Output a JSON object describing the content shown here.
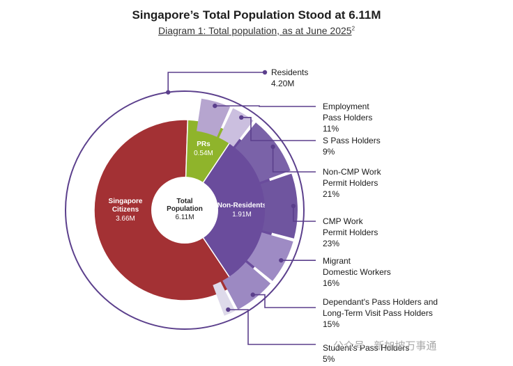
{
  "title": "Singapore’s Total Population Stood at 6.11M",
  "subtitle": "Diagram 1: Total population, as at June 2025",
  "subtitle_sup": "2",
  "watermark": "公众号 · 新加坡万事通",
  "colors": {
    "citizens": "#a33134",
    "prs": "#8fb42b",
    "non_residents": "#6a4c9c",
    "line": "#5b3f8c"
  },
  "chart_data": {
    "type": "pie",
    "title": "Singapore’s Total Population Stood at 6.11M",
    "center": {
      "label_1": "Total",
      "label_2": "Population",
      "value": "6.11M"
    },
    "inner_ring": [
      {
        "name": "Singapore Citizens",
        "label_1": "Singapore",
        "label_2": "Citizens",
        "value": 3.66,
        "display": "3.66M"
      },
      {
        "name": "PRs",
        "label_1": "PRs",
        "value": 0.54,
        "display": "0.54M"
      },
      {
        "name": "Non-Residents",
        "label_1": "Non-Residents",
        "value": 1.91,
        "display": "1.91M"
      }
    ],
    "residents": {
      "name": "Residents",
      "value": 4.2,
      "display": "4.20M"
    },
    "non_resident_breakdown": [
      {
        "lines": [
          "Employment",
          "Pass Holders"
        ],
        "pct": 11,
        "display": "11%",
        "color": "#b6a5cf"
      },
      {
        "lines": [
          "S Pass Holders"
        ],
        "pct": 9,
        "display": "9%",
        "color": "#cbbfdf"
      },
      {
        "lines": [
          "Non-CMP Work",
          "Permit Holders"
        ],
        "pct": 21,
        "display": "21%",
        "color": "#7a62a8"
      },
      {
        "lines": [
          "CMP Work",
          "Permit Holders"
        ],
        "pct": 23,
        "display": "23%",
        "color": "#6f559f"
      },
      {
        "lines": [
          "Migrant",
          "Domestic Workers"
        ],
        "pct": 16,
        "display": "16%",
        "color": "#9e8bc4"
      },
      {
        "lines": [
          "Dependant's Pass Holders and",
          "Long-Term Visit Pass Holders"
        ],
        "pct": 15,
        "display": "15%",
        "color": "#9c89c2"
      },
      {
        "lines": [
          "Student's Pass Holders"
        ],
        "pct": 5,
        "display": "5%",
        "color": "#dedaea"
      }
    ]
  }
}
